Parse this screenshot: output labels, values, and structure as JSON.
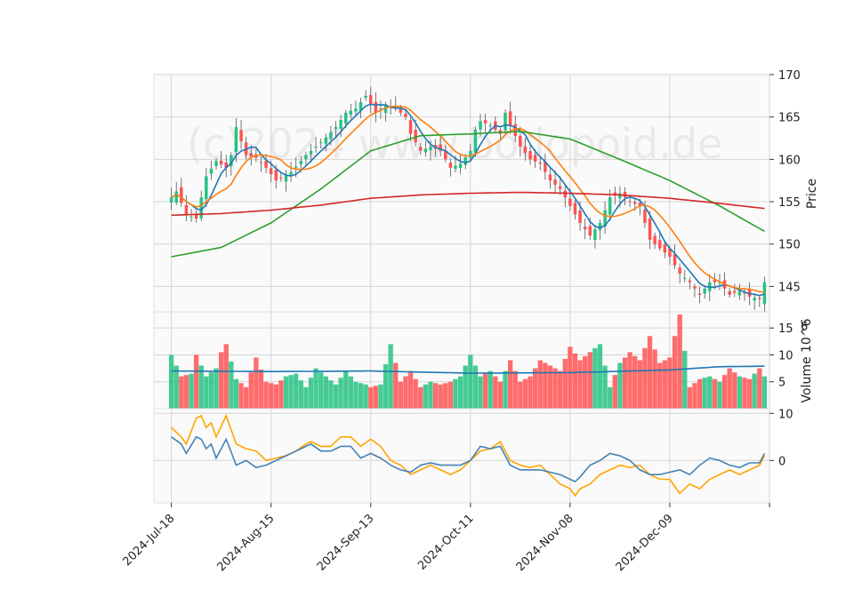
{
  "chart_data": [
    {
      "type": "candlestick",
      "panel": "price",
      "ylabel": "Price",
      "ylim": [
        142,
        170
      ],
      "yticks": [
        145,
        150,
        155,
        160,
        165,
        170
      ],
      "xlim": [
        -3.5,
        120
      ],
      "x_ticks": [
        {
          "index": 0,
          "label": "2024-Jul-18"
        },
        {
          "index": 20,
          "label": "2024-Aug-15"
        },
        {
          "index": 40,
          "label": "2024-Sep-13"
        },
        {
          "index": 60,
          "label": "2024-Oct-11"
        },
        {
          "index": 80,
          "label": "2024-Nov-08"
        },
        {
          "index": 100,
          "label": "2024-Dec-09"
        },
        {
          "index": 120,
          "label": ""
        }
      ],
      "watermark": "(c)2024 www.bodopoid.de",
      "close_anchors": [
        [
          0,
          155.5
        ],
        [
          1,
          156.2
        ],
        [
          3,
          153.5
        ],
        [
          5,
          153.0
        ],
        [
          7,
          158.0
        ],
        [
          9,
          159.8
        ],
        [
          11,
          159.0
        ],
        [
          12,
          160.5
        ],
        [
          13,
          163.8
        ],
        [
          15,
          160.5
        ],
        [
          17,
          160.2
        ],
        [
          19,
          159.0
        ],
        [
          21,
          157.5
        ],
        [
          24,
          158.5
        ],
        [
          27,
          160.5
        ],
        [
          30,
          162.0
        ],
        [
          33,
          163.8
        ],
        [
          35,
          165.5
        ],
        [
          37,
          166.0
        ],
        [
          39,
          167.5
        ],
        [
          41,
          165.5
        ],
        [
          43,
          166.5
        ],
        [
          45,
          166.0
        ],
        [
          47,
          165.0
        ],
        [
          48,
          163.0
        ],
        [
          50,
          161.0
        ],
        [
          52,
          161.5
        ],
        [
          54,
          161.0
        ],
        [
          56,
          159.0
        ],
        [
          58,
          159.5
        ],
        [
          60,
          161.0
        ],
        [
          61,
          163.5
        ],
        [
          62,
          164.5
        ],
        [
          64,
          164.0
        ],
        [
          66,
          163.0
        ],
        [
          67,
          165.5
        ],
        [
          68,
          164.0
        ],
        [
          70,
          161.5
        ],
        [
          72,
          160.0
        ],
        [
          74,
          159.5
        ],
        [
          76,
          157.5
        ],
        [
          78,
          156.5
        ],
        [
          80,
          154.5
        ],
        [
          82,
          152.5
        ],
        [
          84,
          151.0
        ],
        [
          86,
          152.5
        ],
        [
          88,
          155.5
        ],
        [
          90,
          156.0
        ],
        [
          92,
          155.0
        ],
        [
          94,
          154.5
        ],
        [
          96,
          150.5
        ],
        [
          98,
          149.5
        ],
        [
          100,
          148.5
        ],
        [
          102,
          146.5
        ],
        [
          104,
          145.5
        ],
        [
          106,
          144.0
        ],
        [
          108,
          145.5
        ],
        [
          110,
          145.5
        ],
        [
          112,
          144.0
        ],
        [
          114,
          144.5
        ],
        [
          116,
          143.8
        ],
        [
          118,
          143.5
        ],
        [
          119,
          145.5
        ]
      ],
      "series": [
        {
          "name": "SMA 5",
          "color": "#1f77b4",
          "period": 5
        },
        {
          "name": "SMA 10",
          "color": "#ff7f0e",
          "period": 10
        },
        {
          "name": "SMA 50",
          "color": "#2ca02c",
          "period": 50
        },
        {
          "name": "SMA 200",
          "color": "#d62728",
          "values_anchors": [
            [
              0,
              153.4
            ],
            [
              10,
              153.6
            ],
            [
              20,
              154.0
            ],
            [
              30,
              154.6
            ],
            [
              40,
              155.4
            ],
            [
              50,
              155.8
            ],
            [
              60,
              156.0
            ],
            [
              70,
              156.1
            ],
            [
              80,
              156.0
            ],
            [
              90,
              155.8
            ],
            [
              100,
              155.4
            ],
            [
              110,
              154.8
            ],
            [
              119,
              154.2
            ]
          ]
        }
      ]
    },
    {
      "type": "bar",
      "panel": "volume",
      "ylabel": "Volume  10^6",
      "ylim": [
        0,
        18
      ],
      "yticks": [
        5,
        10,
        15
      ],
      "volume_anchors": [
        [
          0,
          10
        ],
        [
          2,
          6
        ],
        [
          4,
          6.5
        ],
        [
          5,
          10
        ],
        [
          7,
          6
        ],
        [
          9,
          7.5
        ],
        [
          10,
          10.5
        ],
        [
          11,
          12
        ],
        [
          13,
          5.5
        ],
        [
          15,
          4
        ],
        [
          17,
          9.5
        ],
        [
          19,
          5
        ],
        [
          21,
          4.5
        ],
        [
          23,
          6
        ],
        [
          25,
          6.5
        ],
        [
          27,
          4
        ],
        [
          29,
          7.5
        ],
        [
          31,
          6
        ],
        [
          33,
          4.5
        ],
        [
          35,
          7
        ],
        [
          37,
          5
        ],
        [
          39,
          4.5
        ],
        [
          40,
          4
        ],
        [
          42,
          4.5
        ],
        [
          44,
          12
        ],
        [
          46,
          5
        ],
        [
          48,
          7
        ],
        [
          50,
          4
        ],
        [
          52,
          5
        ],
        [
          54,
          4.5
        ],
        [
          56,
          5
        ],
        [
          58,
          6
        ],
        [
          60,
          10
        ],
        [
          62,
          6
        ],
        [
          64,
          7
        ],
        [
          66,
          5
        ],
        [
          68,
          9
        ],
        [
          70,
          5
        ],
        [
          72,
          6
        ],
        [
          74,
          9
        ],
        [
          76,
          8
        ],
        [
          78,
          7
        ],
        [
          80,
          11.5
        ],
        [
          82,
          9
        ],
        [
          84,
          10.5
        ],
        [
          86,
          12
        ],
        [
          88,
          4
        ],
        [
          90,
          8.5
        ],
        [
          92,
          10.5
        ],
        [
          94,
          9
        ],
        [
          96,
          13.5
        ],
        [
          98,
          8.5
        ],
        [
          100,
          9.5
        ],
        [
          102,
          17.5
        ],
        [
          104,
          4
        ],
        [
          106,
          5.5
        ],
        [
          108,
          6
        ],
        [
          110,
          5
        ],
        [
          112,
          7.5
        ],
        [
          114,
          6
        ],
        [
          116,
          5.5
        ],
        [
          118,
          7.5
        ],
        [
          119,
          6
        ]
      ],
      "volume_ma_anchors": [
        [
          0,
          7.0
        ],
        [
          20,
          6.9
        ],
        [
          40,
          7.0
        ],
        [
          60,
          6.6
        ],
        [
          80,
          6.7
        ],
        [
          100,
          7.2
        ],
        [
          110,
          7.8
        ],
        [
          119,
          7.9
        ]
      ],
      "colors": {
        "up": "#26c281",
        "down": "#ff5252",
        "ma": "#1f77b4"
      }
    },
    {
      "type": "line",
      "panel": "oscillator",
      "ylim": [
        -9,
        11
      ],
      "yticks": [
        0,
        10
      ],
      "series": [
        {
          "name": "oscillator fast",
          "color": "#ffa500",
          "anchors": [
            [
              0,
              7
            ],
            [
              2,
              5
            ],
            [
              3,
              3.5
            ],
            [
              5,
              9
            ],
            [
              6,
              9.5
            ],
            [
              7,
              7
            ],
            [
              8,
              8
            ],
            [
              9,
              5
            ],
            [
              11,
              9.5
            ],
            [
              13,
              3.5
            ],
            [
              15,
              2.5
            ],
            [
              17,
              2
            ],
            [
              19,
              0
            ],
            [
              21,
              0.5
            ],
            [
              23,
              1
            ],
            [
              25,
              2
            ],
            [
              27,
              3.5
            ],
            [
              28,
              4
            ],
            [
              30,
              3
            ],
            [
              32,
              3
            ],
            [
              34,
              5
            ],
            [
              36,
              5
            ],
            [
              38,
              3
            ],
            [
              40,
              4.5
            ],
            [
              42,
              3
            ],
            [
              44,
              0
            ],
            [
              46,
              -1
            ],
            [
              48,
              -3
            ],
            [
              50,
              -2
            ],
            [
              52,
              -1
            ],
            [
              54,
              -2
            ],
            [
              56,
              -3
            ],
            [
              58,
              -2
            ],
            [
              60,
              0
            ],
            [
              62,
              2
            ],
            [
              64,
              2.5
            ],
            [
              66,
              4
            ],
            [
              68,
              0
            ],
            [
              70,
              -1
            ],
            [
              72,
              -1.5
            ],
            [
              74,
              -1
            ],
            [
              76,
              -3
            ],
            [
              78,
              -5
            ],
            [
              80,
              -6
            ],
            [
              81,
              -7.5
            ],
            [
              82,
              -6
            ],
            [
              84,
              -5
            ],
            [
              86,
              -3
            ],
            [
              88,
              -2
            ],
            [
              90,
              -1
            ],
            [
              92,
              -1.5
            ],
            [
              94,
              -1
            ],
            [
              96,
              -3
            ],
            [
              98,
              -4
            ],
            [
              100,
              -4
            ],
            [
              102,
              -7
            ],
            [
              104,
              -5
            ],
            [
              106,
              -6
            ],
            [
              108,
              -4
            ],
            [
              110,
              -3
            ],
            [
              112,
              -2
            ],
            [
              114,
              -3
            ],
            [
              116,
              -2
            ],
            [
              118,
              -1
            ],
            [
              119,
              1
            ]
          ]
        },
        {
          "name": "oscillator slow",
          "color": "#4682b4",
          "anchors": [
            [
              0,
              5
            ],
            [
              2,
              3.5
            ],
            [
              3,
              1.5
            ],
            [
              5,
              5
            ],
            [
              6,
              4.5
            ],
            [
              7,
              2.5
            ],
            [
              8,
              3.5
            ],
            [
              9,
              0.5
            ],
            [
              11,
              4.5
            ],
            [
              13,
              -1
            ],
            [
              15,
              0
            ],
            [
              17,
              -1.5
            ],
            [
              19,
              -1
            ],
            [
              21,
              0
            ],
            [
              23,
              1
            ],
            [
              25,
              2
            ],
            [
              27,
              3
            ],
            [
              28,
              3.5
            ],
            [
              30,
              2
            ],
            [
              32,
              2
            ],
            [
              34,
              3
            ],
            [
              36,
              3
            ],
            [
              38,
              0.5
            ],
            [
              40,
              1.5
            ],
            [
              42,
              0.5
            ],
            [
              44,
              -1
            ],
            [
              46,
              -2
            ],
            [
              48,
              -2.5
            ],
            [
              50,
              -1
            ],
            [
              52,
              -0.5
            ],
            [
              54,
              -1
            ],
            [
              56,
              -1
            ],
            [
              58,
              -1
            ],
            [
              60,
              0
            ],
            [
              62,
              3
            ],
            [
              64,
              2.5
            ],
            [
              66,
              3
            ],
            [
              68,
              -1
            ],
            [
              70,
              -2
            ],
            [
              72,
              -2
            ],
            [
              74,
              -2
            ],
            [
              76,
              -2.5
            ],
            [
              78,
              -3
            ],
            [
              80,
              -4
            ],
            [
              81,
              -4.5
            ],
            [
              82,
              -3.5
            ],
            [
              84,
              -1
            ],
            [
              86,
              0
            ],
            [
              88,
              1.5
            ],
            [
              90,
              1
            ],
            [
              92,
              0
            ],
            [
              94,
              -2
            ],
            [
              96,
              -3
            ],
            [
              98,
              -3
            ],
            [
              100,
              -2.5
            ],
            [
              102,
              -2
            ],
            [
              104,
              -3
            ],
            [
              106,
              -1
            ],
            [
              108,
              0.5
            ],
            [
              110,
              0
            ],
            [
              112,
              -1
            ],
            [
              114,
              -1.5
            ],
            [
              116,
              -0.5
            ],
            [
              118,
              -0.5
            ],
            [
              119,
              1.5
            ]
          ]
        }
      ]
    }
  ]
}
